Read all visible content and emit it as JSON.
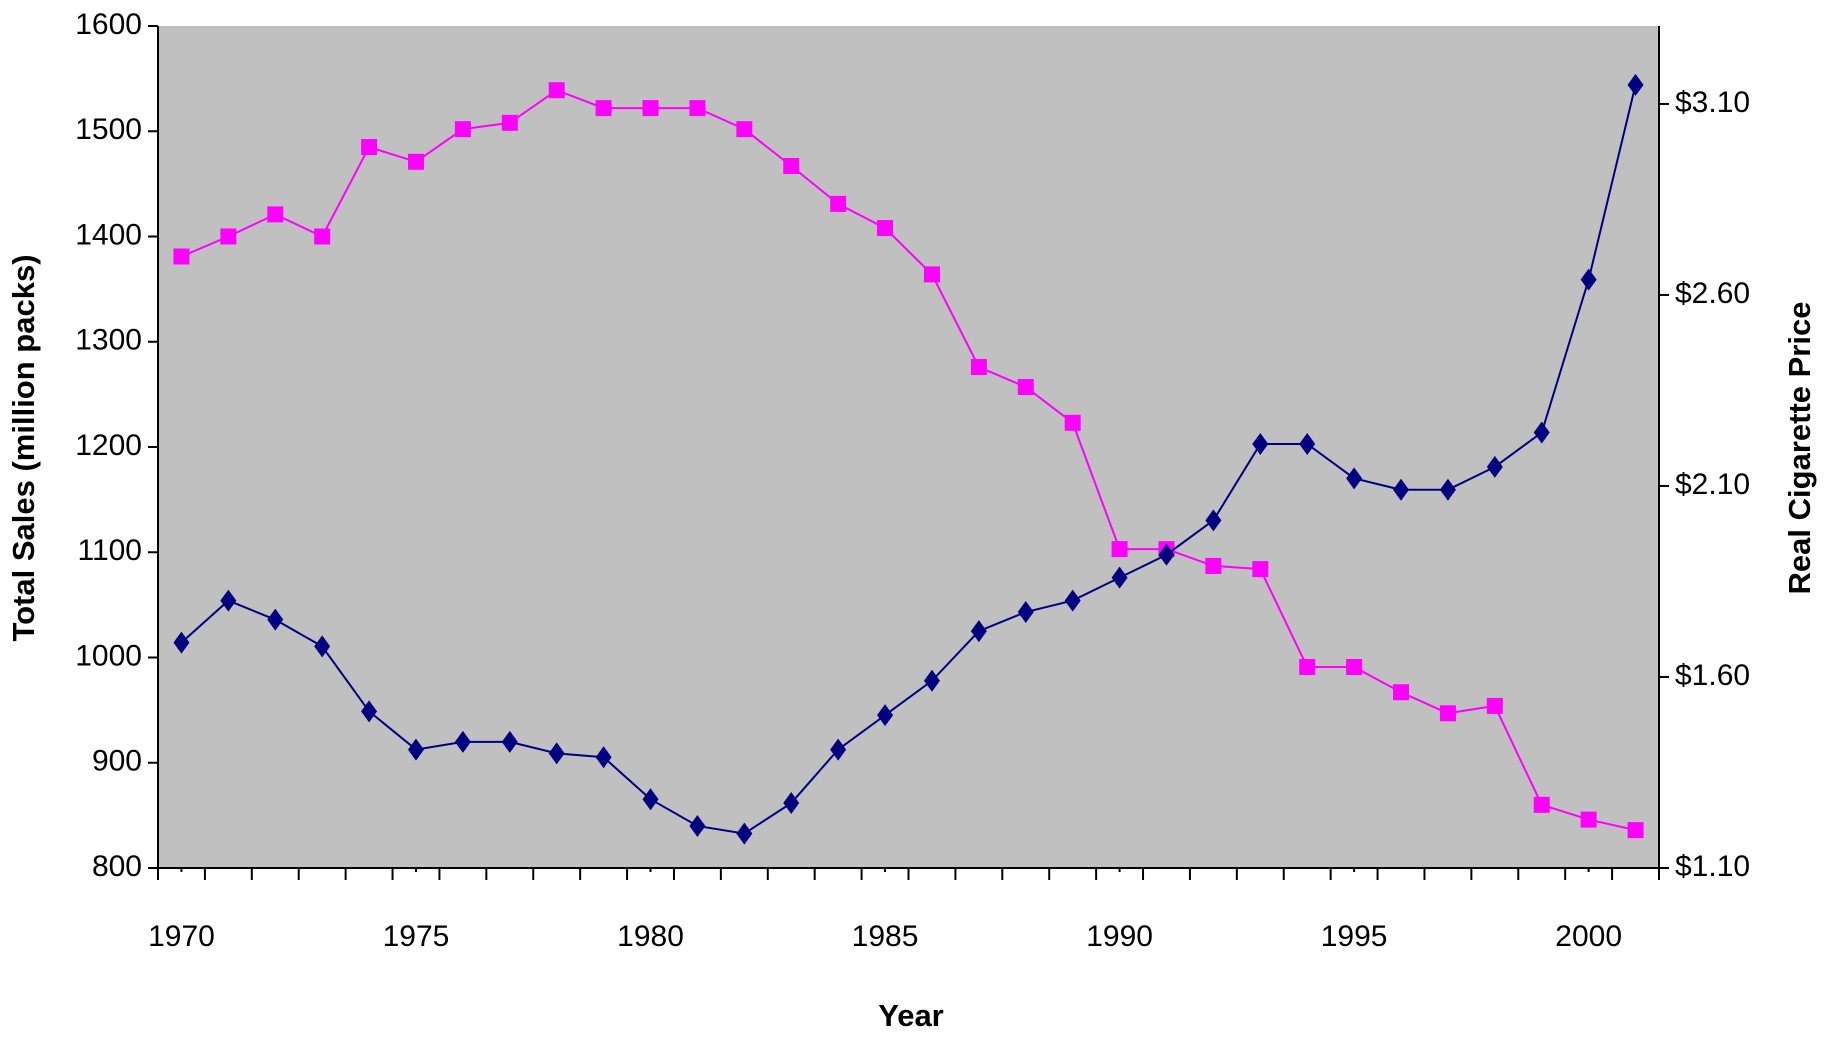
{
  "chart_data": {
    "type": "line",
    "x_label": "Year",
    "y_label": "Total Sales (million packs)",
    "y2_label": "Real Cigarette Price",
    "x": [
      1970,
      1971,
      1972,
      1973,
      1974,
      1975,
      1976,
      1977,
      1978,
      1979,
      1980,
      1981,
      1982,
      1983,
      1984,
      1985,
      1986,
      1987,
      1988,
      1989,
      1990,
      1991,
      1992,
      1993,
      1994,
      1995,
      1996,
      1997,
      1998,
      1999,
      2000,
      2001
    ],
    "series": [
      {
        "color": "#ff00ff",
        "marker": "square",
        "values": [
          1381,
          1400,
          1421,
          1400,
          1485,
          1471,
          1502,
          1508,
          1539,
          1522,
          1522,
          1522,
          1502,
          1467,
          1431,
          1408,
          1364,
          1276,
          1257,
          1223,
          1103,
          1103,
          1087,
          1084,
          991,
          991,
          967,
          947,
          954,
          860,
          846,
          836
        ]
      },
      {
        "color": "#000080",
        "marker": "diamond",
        "axis": "y2",
        "values": [
          1.69,
          1.8,
          1.75,
          1.68,
          1.51,
          1.41,
          1.43,
          1.43,
          1.4,
          1.39,
          1.28,
          1.21,
          1.19,
          1.27,
          1.41,
          1.5,
          1.59,
          1.72,
          1.77,
          1.8,
          1.86,
          1.92,
          2.01,
          2.21,
          2.21,
          2.12,
          2.09,
          2.09,
          2.15,
          2.24,
          2.64,
          3.15
        ]
      }
    ],
    "xlim": [
      1969.5,
      2001.5
    ],
    "xticks": [
      1970,
      1975,
      1980,
      1985,
      1990,
      1995,
      2000
    ],
    "ylim": [
      800,
      1600
    ],
    "yticks": [
      800,
      900,
      1000,
      1100,
      1200,
      1300,
      1400,
      1500,
      1600
    ],
    "y2lim": [
      1.1,
      3.304
    ],
    "y2ticks": [
      {
        "value": 1.1,
        "label": "$1.10"
      },
      {
        "value": 1.6,
        "label": "$1.60"
      },
      {
        "value": 2.1,
        "label": "$2.10"
      },
      {
        "value": 2.6,
        "label": "$2.60"
      },
      {
        "value": 3.1,
        "label": "$3.10"
      }
    ],
    "plot_background": "#c0c0c0"
  }
}
